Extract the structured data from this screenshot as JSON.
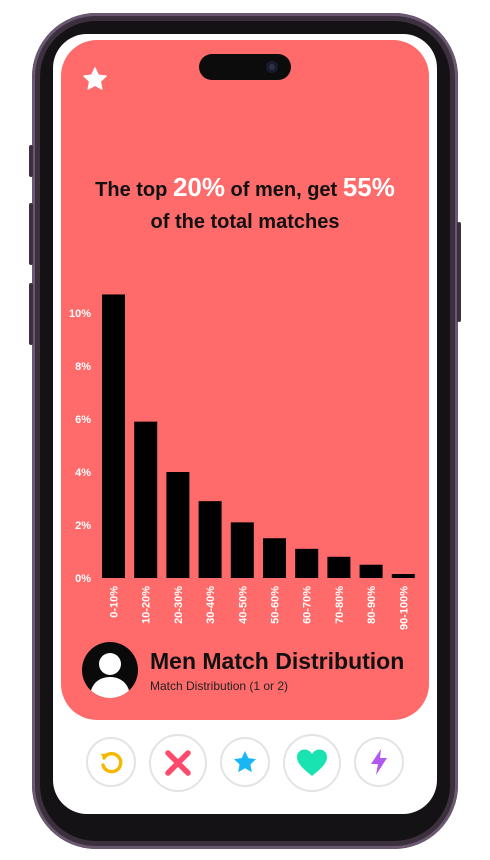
{
  "headline": {
    "prefix": "The top",
    "top_share": "20%",
    "middle": "of men, get",
    "match_share": "55%",
    "suffix": "of the total matches"
  },
  "profile": {
    "title": "Men Match Distribution",
    "subtitle": "Match Distribution (1 or 2)"
  },
  "colors": {
    "card": "#ff6a6a",
    "bars": "#000000",
    "accent_white": "#ffffff",
    "rewind": "#f5b700",
    "nope": "#ff4a6b",
    "super_like": "#19b5f5",
    "like": "#19e3b1",
    "boost": "#b158f0"
  },
  "actions": [
    {
      "name": "rewind-button",
      "icon": "rewind-icon"
    },
    {
      "name": "nope-button",
      "icon": "x-icon"
    },
    {
      "name": "super-like-button",
      "icon": "star-icon"
    },
    {
      "name": "like-button",
      "icon": "heart-icon"
    },
    {
      "name": "boost-button",
      "icon": "lightning-icon"
    }
  ],
  "chart_data": {
    "type": "bar",
    "categories": [
      "0-10%",
      "10-20%",
      "20-30%",
      "30-40%",
      "40-50%",
      "50-60%",
      "60-70%",
      "70-80%",
      "80-90%",
      "90-100%"
    ],
    "values": [
      10.7,
      5.9,
      4.0,
      2.9,
      2.1,
      1.5,
      1.1,
      0.8,
      0.5,
      0.15
    ],
    "ylim": [
      0,
      11.5
    ],
    "yticks": [
      0,
      2,
      4,
      6,
      8,
      10
    ],
    "ytick_labels": [
      "0%",
      "2%",
      "4%",
      "6%",
      "8%",
      "10%"
    ],
    "grid": false,
    "title": "",
    "xlabel": "",
    "ylabel": ""
  }
}
